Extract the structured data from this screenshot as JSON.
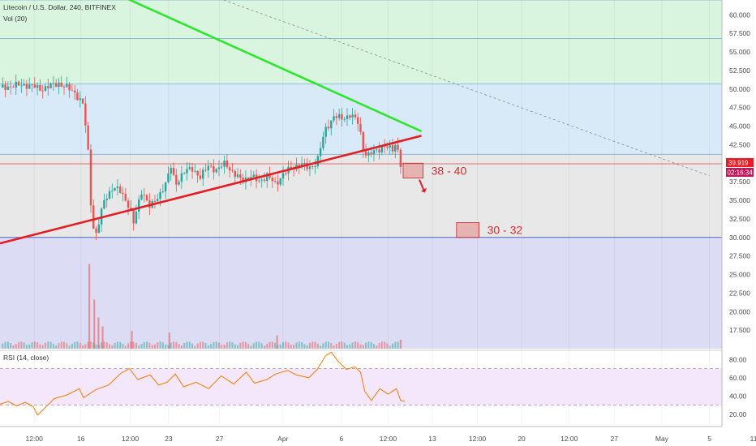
{
  "header": {
    "symbol_title": "Litecoin / U.S. Dollar, 240, BITFINEX",
    "volume_label": "Vol (20)",
    "rsi_label": "RSI (14, close)"
  },
  "price_badge": {
    "price": "39.919",
    "countdown": "02:16:34"
  },
  "colors": {
    "candle_up": "#26a69a",
    "candle_down": "#ef5350",
    "trendline_upper": "#2ee62e",
    "trendline_lower": "#e31e24",
    "zone_green": "#d9f5df",
    "zone_blue": "#d8eaf7",
    "zone_grey": "#e8e8e8",
    "zone_purple": "#dcdcf4",
    "rsi_line": "#f57c00",
    "rsi_band": "#f4e6fb",
    "target_box": "#e57373"
  },
  "chart_data": [
    {
      "type": "candlestick",
      "title": "Litecoin / U.S. Dollar, 240, BITFINEX",
      "ylim": [
        15.0,
        62.0
      ],
      "y_ticks": [
        "60.000",
        "57.500",
        "55.000",
        "52.500",
        "50.000",
        "47.500",
        "45.000",
        "42.500",
        "40.000",
        "37.500",
        "35.000",
        "32.500",
        "30.000",
        "27.500",
        "25.000",
        "22.500",
        "20.000",
        "17.500"
      ],
      "x_ticks": [
        "12:00",
        "16",
        "12:00",
        "23",
        "27",
        "Apr",
        "6",
        "12:00",
        "13",
        "12:00",
        "20",
        "12:00",
        "27",
        "May",
        "5",
        "11"
      ],
      "price_path": [
        [
          0,
          50.2
        ],
        [
          3,
          50.6
        ],
        [
          5,
          50.0
        ],
        [
          7,
          50.8
        ],
        [
          9,
          49.5
        ],
        [
          10,
          47.8
        ],
        [
          10.6,
          41.0
        ],
        [
          11,
          32.0
        ],
        [
          11.5,
          30.4
        ],
        [
          12.5,
          35.0
        ],
        [
          13.5,
          36.8
        ],
        [
          14.5,
          36.1
        ],
        [
          15.5,
          34.2
        ],
        [
          16,
          31.9
        ],
        [
          17,
          36.4
        ],
        [
          18,
          34.0
        ],
        [
          19,
          35.6
        ],
        [
          20,
          37.6
        ],
        [
          20.5,
          39.6
        ],
        [
          21,
          37.2
        ],
        [
          22,
          38.7
        ],
        [
          23,
          39.4
        ],
        [
          24,
          38.0
        ],
        [
          25,
          39.8
        ],
        [
          26,
          38.9
        ],
        [
          27,
          40.2
        ],
        [
          28,
          38.4
        ],
        [
          29,
          37.8
        ],
        [
          30,
          38.2
        ],
        [
          31,
          37.6
        ],
        [
          32,
          38.3
        ],
        [
          33,
          37.2
        ],
        [
          34,
          38.6
        ],
        [
          35,
          39.4
        ],
        [
          36,
          39.9
        ],
        [
          37,
          39.3
        ],
        [
          38,
          40.2
        ],
        [
          38.5,
          42.5
        ],
        [
          39,
          44.6
        ],
        [
          40,
          46.3
        ],
        [
          41,
          46.0
        ],
        [
          42,
          46.6
        ],
        [
          43,
          45.3
        ],
        [
          43.5,
          42.0
        ],
        [
          44,
          41.0
        ],
        [
          45,
          41.6
        ],
        [
          46,
          42.4
        ],
        [
          47,
          41.7
        ],
        [
          47.5,
          42.9
        ],
        [
          48,
          39.9
        ]
      ],
      "upper_trendline": {
        "from": [
          14.4,
          62.6
        ],
        "to": [
          50.5,
          44.3
        ],
        "label": ""
      },
      "lower_trendline": {
        "from": [
          0,
          29.2
        ],
        "to": [
          50.5,
          43.7
        ],
        "label": ""
      },
      "dotted_trendline": {
        "from": [
          26.8,
          62.0
        ],
        "to": [
          85,
          38.3
        ]
      },
      "horizontal_zones": [
        {
          "from": 56.8,
          "to": 62.0,
          "color": "zone_green"
        },
        {
          "from": 50.7,
          "to": 56.8,
          "color": "zone_green"
        },
        {
          "from": 41.2,
          "to": 50.7,
          "color": "zone_blue"
        },
        {
          "from": 30.0,
          "to": 41.2,
          "color": "zone_grey"
        },
        {
          "from": 15.0,
          "to": 30.0,
          "color": "zone_purple"
        }
      ],
      "current_price_line": 39.919,
      "targets": [
        {
          "label": "38 - 40",
          "range": [
            38.0,
            40.0
          ],
          "x_from": 48.3,
          "x_to": 50.7
        },
        {
          "label": "30 - 32",
          "range": [
            30.0,
            32.0
          ],
          "x_from": 54.7,
          "x_to": 57.4
        }
      ],
      "volume_spikes": [
        [
          10.7,
          0.95
        ],
        [
          11.3,
          0.55
        ],
        [
          11.8,
          0.35
        ],
        [
          12.3,
          0.25
        ],
        [
          15.8,
          0.2
        ],
        [
          20.3,
          0.18
        ],
        [
          33.2,
          0.15
        ],
        [
          48,
          0.1
        ]
      ]
    },
    {
      "type": "line",
      "title": "RSI (14, close)",
      "ylim": [
        10,
        90
      ],
      "y_ticks": [
        "80.00",
        "60.00",
        "40.00",
        "20.00"
      ],
      "bands": [
        30,
        70
      ],
      "rsi": [
        [
          0,
          31
        ],
        [
          1,
          34
        ],
        [
          2,
          29
        ],
        [
          3,
          33
        ],
        [
          4,
          28
        ],
        [
          4.5,
          19
        ],
        [
          5.5,
          28
        ],
        [
          6.5,
          37
        ],
        [
          8,
          41
        ],
        [
          9.5,
          48
        ],
        [
          10,
          38
        ],
        [
          11.5,
          47
        ],
        [
          13,
          52
        ],
        [
          14.5,
          65
        ],
        [
          15.5,
          70
        ],
        [
          16.5,
          58
        ],
        [
          18,
          63
        ],
        [
          19,
          52
        ],
        [
          20,
          55
        ],
        [
          21,
          64
        ],
        [
          22,
          50
        ],
        [
          23.5,
          55
        ],
        [
          25,
          48
        ],
        [
          26.5,
          62
        ],
        [
          28,
          53
        ],
        [
          29.5,
          66
        ],
        [
          30.5,
          54
        ],
        [
          32,
          58
        ],
        [
          33,
          64
        ],
        [
          34.5,
          68
        ],
        [
          35.5,
          63
        ],
        [
          37,
          60
        ],
        [
          38,
          69
        ],
        [
          39,
          84
        ],
        [
          39.7,
          88
        ],
        [
          40.5,
          78
        ],
        [
          41.5,
          69
        ],
        [
          42.5,
          72
        ],
        [
          43.2,
          66
        ],
        [
          43.7,
          45
        ],
        [
          44.5,
          35
        ],
        [
          45.5,
          48
        ],
        [
          46.5,
          42
        ],
        [
          47.5,
          48
        ],
        [
          48,
          35
        ],
        [
          48.5,
          34
        ]
      ]
    }
  ]
}
